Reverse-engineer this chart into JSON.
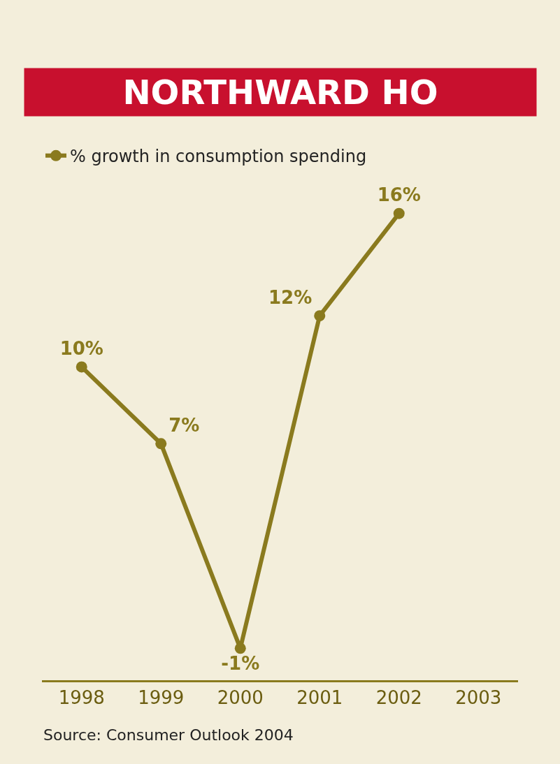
{
  "chart_data": {
    "type": "line",
    "title": "NORTHWARD HO",
    "categories": [
      "1998",
      "1999",
      "2000",
      "2001",
      "2002",
      "2003"
    ],
    "series": [
      {
        "name": "% growth in consumption spending",
        "color": "#8a7a1e",
        "values": [
          10,
          7,
          -1,
          12,
          16,
          null
        ],
        "value_labels": [
          "10%",
          "7%",
          "-1%",
          "12%",
          "16%",
          null
        ]
      }
    ],
    "marker": "circle",
    "legend": "top left",
    "grid": false,
    "annotations": [
      "Source: Consumer Outlook 2004"
    ]
  }
}
